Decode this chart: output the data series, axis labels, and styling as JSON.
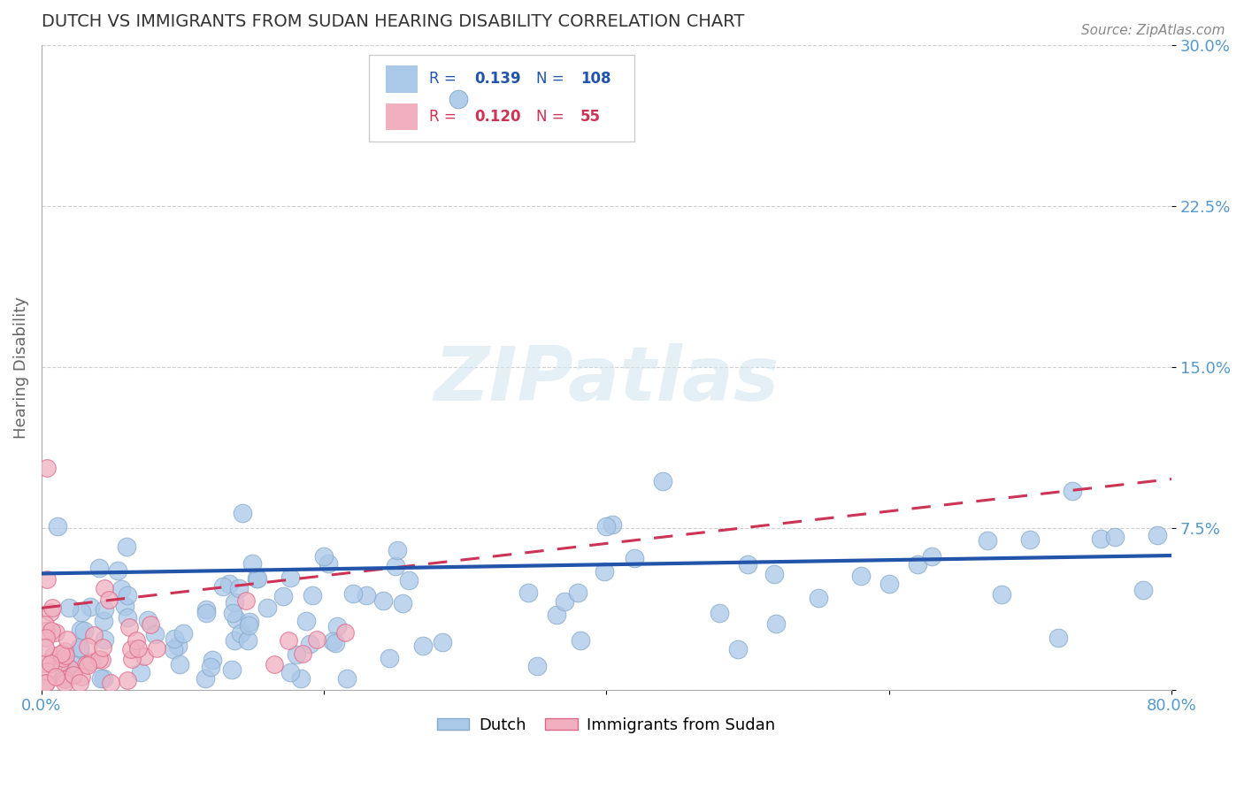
{
  "title": "DUTCH VS IMMIGRANTS FROM SUDAN HEARING DISABILITY CORRELATION CHART",
  "source": "Source: ZipAtlas.com",
  "ylabel": "Hearing Disability",
  "xlim": [
    0.0,
    0.8
  ],
  "ylim": [
    0.0,
    0.3
  ],
  "yticks": [
    0.0,
    0.075,
    0.15,
    0.225,
    0.3
  ],
  "yticklabels_right": [
    "",
    "7.5%",
    "15.0%",
    "22.5%",
    "30.0%"
  ],
  "xticks": [
    0.0,
    0.2,
    0.4,
    0.6,
    0.8
  ],
  "xticklabels": [
    "0.0%",
    "",
    "",
    "",
    "80.0%"
  ],
  "dutch_R": 0.139,
  "dutch_N": 108,
  "sudan_R": 0.12,
  "sudan_N": 55,
  "dutch_color": "#aac8e8",
  "dutch_edge_color": "#88aacc",
  "dutch_line_color": "#2255aa",
  "sudan_color": "#f0b0c0",
  "sudan_edge_color": "#dd6688",
  "sudan_line_color": "#cc3355",
  "watermark_text": "ZIPatlas",
  "legend_dutch": "Dutch",
  "legend_sudan": "Immigrants from Sudan",
  "background_color": "#ffffff",
  "grid_color": "#bbbbbb",
  "title_color": "#333333",
  "tick_label_color": "#5599cc",
  "dutch_line_intercept": 0.054,
  "dutch_line_slope": 0.0105,
  "sudan_line_intercept": 0.038,
  "sudan_line_slope": 0.075
}
